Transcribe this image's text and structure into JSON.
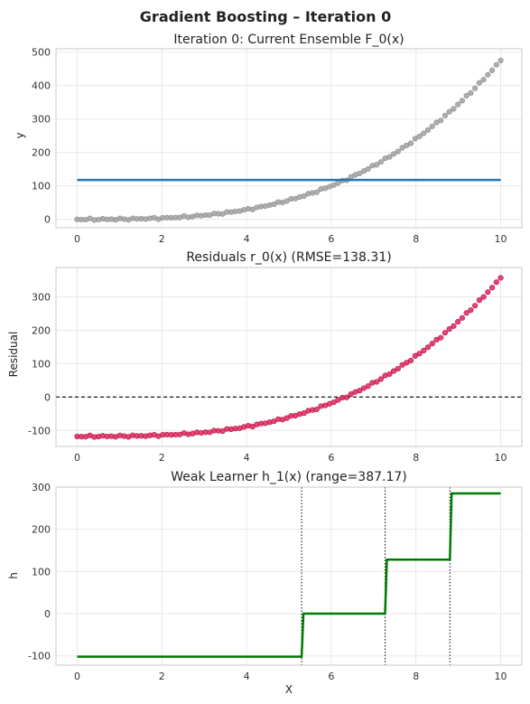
{
  "suptitle": "Gradient Boosting – Iteration 0",
  "colors": {
    "scatter_gray": "#a0a0a0",
    "ensemble_line": "#1f77b4",
    "residual_points": "#e0245e",
    "learner_line": "#007a00",
    "grid": "#e8e8e8",
    "frame": "#c8c8c8"
  },
  "chart_data": [
    {
      "id": "ensemble",
      "type": "scatter",
      "title": "Iteration 0: Current Ensemble F_0(x)",
      "xlabel": "",
      "ylabel": "y",
      "xlim": [
        -0.5,
        10.5
      ],
      "ylim": [
        -25,
        510
      ],
      "xticks": [
        0,
        2,
        4,
        6,
        8,
        10
      ],
      "yticks": [
        0,
        100,
        200,
        300,
        400,
        500
      ],
      "grid": true,
      "points_function": "y = 0.5*x^3 - 0.3*x^2 + 0.5*x + noise, x in 0..10 (100 points)",
      "line": {
        "x": [
          0,
          10
        ],
        "y": [
          118,
          118
        ]
      }
    },
    {
      "id": "residuals",
      "type": "scatter",
      "title": "Residuals r_0(x)  (RMSE=138.31)",
      "xlabel": "",
      "ylabel": "Residual",
      "xlim": [
        -0.5,
        10.5
      ],
      "ylim": [
        -148,
        388
      ],
      "xticks": [
        0,
        2,
        4,
        6,
        8,
        10
      ],
      "yticks": [
        -100,
        0,
        100,
        200,
        300
      ],
      "grid": true,
      "zero_line": 0,
      "points_function": "residual = y - 118"
    },
    {
      "id": "weak_learner",
      "type": "line",
      "title": "Weak Learner h_1(x)  (range=387.17)",
      "xlabel": "X",
      "ylabel": "h",
      "xlim": [
        -0.5,
        10.5
      ],
      "ylim": [
        -122,
        300
      ],
      "xticks": [
        0,
        2,
        4,
        6,
        8,
        10
      ],
      "yticks": [
        -100,
        0,
        100,
        200,
        300
      ],
      "grid": true,
      "splits": [
        5.3,
        7.27,
        8.8
      ],
      "steps": [
        {
          "x_start": 0,
          "x_end": 5.3,
          "y": -102
        },
        {
          "x_start": 5.3,
          "x_end": 7.27,
          "y": 0
        },
        {
          "x_start": 7.27,
          "x_end": 8.8,
          "y": 128
        },
        {
          "x_start": 8.8,
          "x_end": 10,
          "y": 285
        }
      ]
    }
  ]
}
